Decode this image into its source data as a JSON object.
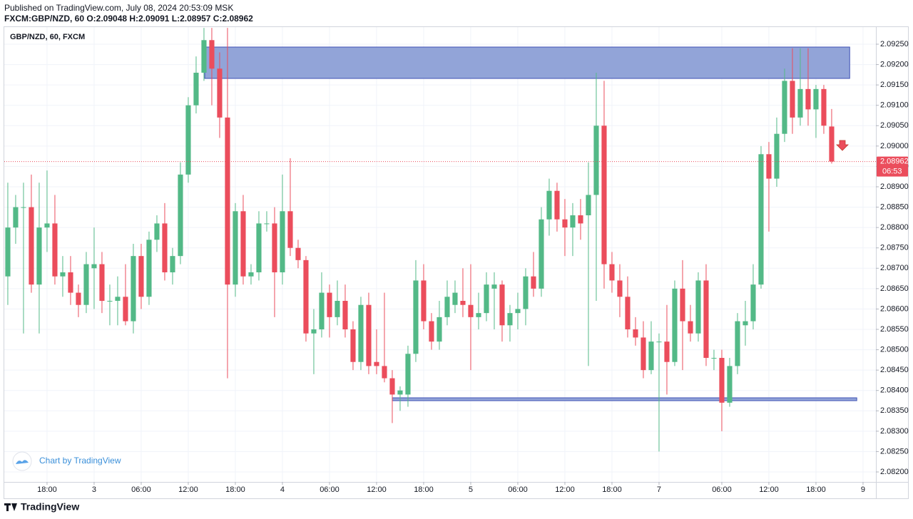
{
  "header": {
    "published": "Published on TradingView.com, July 08, 2024 20:53:09 MSK",
    "info": "FXCM:GBP/NZD, 60 O:2.09048 H:2.09091 L:2.08957 C:2.08962"
  },
  "footer": {
    "logo": "TradingView",
    "watermark": "Chart by TradingView"
  },
  "chart_data": {
    "type": "candlestick",
    "title": "GBP/NZD, 60, FXCM",
    "up_color": "#53b987",
    "down_color": "#eb4d5c",
    "grid": true,
    "open": [
      2.0868,
      2.088,
      2.0885,
      2.0885,
      2.0866,
      2.088,
      2.0881,
      2.0868,
      2.0869,
      2.0864,
      2.0861,
      2.087,
      2.0871,
      2.0862,
      2.0862,
      2.0863,
      2.0857,
      2.0873,
      2.0863,
      2.0877,
      2.0881,
      2.0869,
      2.0873,
      2.0893,
      2.091,
      2.0918,
      2.0926,
      2.0919,
      2.0907,
      2.0866,
      2.0884,
      2.0868,
      2.0869,
      2.0881,
      2.0881,
      2.0869,
      2.0884,
      2.0875,
      2.0872,
      2.0854,
      2.0855,
      2.0864,
      2.0858,
      2.0862,
      2.0855,
      2.0847,
      2.0861,
      2.0847,
      2.0846,
      2.0843,
      2.0839,
      2.0839,
      2.0849,
      2.0867,
      2.0857,
      2.0852,
      2.0858,
      2.0861,
      2.0862,
      2.0861,
      2.0858,
      2.0859,
      2.0865,
      2.0866,
      2.0856,
      2.0859,
      2.086,
      2.0868,
      2.0865,
      2.0882,
      2.0889,
      2.0882,
      2.088,
      2.0883,
      2.0883,
      2.0888,
      2.0905,
      2.0871,
      2.0867,
      2.0863,
      2.0855,
      2.0853,
      2.0845,
      2.0852,
      2.0852,
      2.0847,
      2.0865,
      2.0857,
      2.0854,
      2.0867,
      2.0848,
      2.0848,
      2.0837,
      2.0846,
      2.0856,
      2.0857,
      2.0866,
      2.0898,
      2.0892,
      2.0903,
      2.0916,
      2.0907,
      2.0914,
      2.0909,
      2.0914,
      2.09048
    ],
    "high": [
      2.0891,
      2.0888,
      2.0891,
      2.0893,
      2.0891,
      2.0894,
      2.0888,
      2.0873,
      2.0873,
      2.0866,
      2.0874,
      2.088,
      2.0874,
      2.0866,
      2.0868,
      2.0871,
      2.0876,
      2.0876,
      2.0879,
      2.0883,
      2.0886,
      2.0875,
      2.0896,
      2.0912,
      2.0922,
      2.0929,
      2.0929,
      2.0923,
      2.0929,
      2.0886,
      2.0888,
      2.0871,
      2.0884,
      2.0884,
      2.0885,
      2.0893,
      2.0897,
      2.0877,
      2.0873,
      2.086,
      2.0869,
      2.0866,
      2.0867,
      2.0866,
      2.0857,
      2.0863,
      2.0864,
      2.0855,
      2.0864,
      2.0845,
      2.0841,
      2.0851,
      2.0872,
      2.0871,
      2.0859,
      2.0862,
      2.0867,
      2.0867,
      2.087,
      2.0871,
      2.0864,
      2.0869,
      2.0869,
      2.0867,
      2.0861,
      2.0864,
      2.087,
      2.0874,
      2.0885,
      2.0892,
      2.0891,
      2.0887,
      2.0886,
      2.0887,
      2.0896,
      2.0918,
      2.0916,
      2.0874,
      2.0871,
      2.0868,
      2.0858,
      2.0857,
      2.0857,
      2.0854,
      2.0861,
      2.0867,
      2.0872,
      2.0861,
      2.0869,
      2.0871,
      2.085,
      2.085,
      2.0848,
      2.0859,
      2.0862,
      2.0871,
      2.09,
      2.0901,
      2.0907,
      2.0919,
      2.0924,
      2.0924,
      2.0924,
      2.0915,
      2.0915,
      2.09091
    ],
    "low": [
      2.0861,
      2.0876,
      2.0854,
      2.0864,
      2.0854,
      2.0874,
      2.0866,
      2.0863,
      2.0861,
      2.0858,
      2.0859,
      2.086,
      2.0859,
      2.0856,
      2.0856,
      2.0856,
      2.0854,
      2.086,
      2.0861,
      2.0874,
      2.0867,
      2.0866,
      2.0871,
      2.0891,
      2.0908,
      2.0916,
      2.091,
      2.0902,
      2.0843,
      2.0863,
      2.0866,
      2.0866,
      2.0867,
      2.0879,
      2.0858,
      2.0866,
      2.0873,
      2.087,
      2.0852,
      2.0844,
      2.0853,
      2.0853,
      2.0856,
      2.0853,
      2.0845,
      2.0845,
      2.0844,
      2.0844,
      2.0842,
      2.0832,
      2.0835,
      2.0836,
      2.0847,
      2.0855,
      2.085,
      2.085,
      2.0856,
      2.0859,
      2.0858,
      2.0845,
      2.0855,
      2.0857,
      2.0855,
      2.0852,
      2.0852,
      2.0855,
      2.0856,
      2.0863,
      2.0863,
      2.0878,
      2.0879,
      2.0873,
      2.0873,
      2.0877,
      2.0846,
      2.0862,
      2.0865,
      2.0864,
      2.0858,
      2.0853,
      2.0851,
      2.0843,
      2.0844,
      2.0825,
      2.0839,
      2.0846,
      2.0845,
      2.0852,
      2.0852,
      2.0846,
      2.0845,
      2.083,
      2.0836,
      2.0844,
      2.0851,
      2.0855,
      2.0865,
      2.0879,
      2.089,
      2.0901,
      2.0903,
      2.0905,
      2.0905,
      2.0902,
      2.0903,
      2.08957
    ],
    "close": [
      2.088,
      2.0885,
      2.0885,
      2.0866,
      2.088,
      2.0881,
      2.0868,
      2.0869,
      2.0864,
      2.0861,
      2.0871,
      2.0871,
      2.0862,
      2.0862,
      2.0863,
      2.0857,
      2.0873,
      2.0863,
      2.0877,
      2.0881,
      2.0869,
      2.0873,
      2.0893,
      2.091,
      2.0918,
      2.0926,
      2.0919,
      2.0907,
      2.0866,
      2.0884,
      2.0868,
      2.0869,
      2.0881,
      2.0881,
      2.0869,
      2.0884,
      2.0875,
      2.0872,
      2.0854,
      2.0855,
      2.0864,
      2.0858,
      2.0862,
      2.0855,
      2.0847,
      2.0861,
      2.0846,
      2.0846,
      2.0843,
      2.0839,
      2.084,
      2.0849,
      2.0867,
      2.0857,
      2.0852,
      2.0858,
      2.0863,
      2.0864,
      2.0861,
      2.0858,
      2.0859,
      2.0866,
      2.0866,
      2.0856,
      2.0859,
      2.086,
      2.0868,
      2.0865,
      2.0882,
      2.0889,
      2.0882,
      2.088,
      2.0883,
      2.0881,
      2.0888,
      2.0905,
      2.0871,
      2.0867,
      2.0863,
      2.0855,
      2.0853,
      2.0845,
      2.0852,
      2.0852,
      2.0847,
      2.0865,
      2.0857,
      2.0854,
      2.0867,
      2.0848,
      2.0848,
      2.0837,
      2.0846,
      2.0857,
      2.0857,
      2.0866,
      2.0898,
      2.0892,
      2.0903,
      2.0916,
      2.0907,
      2.0914,
      2.0909,
      2.0914,
      2.0905,
      2.08962
    ],
    "xlim": [
      -0.45,
      110.64
    ],
    "xticks": [
      {
        "value": 5,
        "label": "18:00"
      },
      {
        "value": 11,
        "label": "3"
      },
      {
        "value": 17,
        "label": "06:00"
      },
      {
        "value": 23,
        "label": "12:00"
      },
      {
        "value": 29,
        "label": "18:00"
      },
      {
        "value": 35,
        "label": "4"
      },
      {
        "value": 41,
        "label": "06:00"
      },
      {
        "value": 47,
        "label": "12:00"
      },
      {
        "value": 53,
        "label": "18:00"
      },
      {
        "value": 59,
        "label": "5"
      },
      {
        "value": 65,
        "label": "06:00"
      },
      {
        "value": 71,
        "label": "12:00"
      },
      {
        "value": 77,
        "label": "18:00"
      },
      {
        "value": 83,
        "label": "7"
      },
      {
        "value": 91,
        "label": "06:00"
      },
      {
        "value": 97,
        "label": "12:00"
      },
      {
        "value": 103,
        "label": "18:00"
      },
      {
        "value": 109,
        "label": "9"
      }
    ],
    "ylim": [
      2.081755,
      2.09292
    ],
    "yticks": [
      {
        "value": 2.082,
        "label": "2.08200"
      },
      {
        "value": 2.0825,
        "label": "2.08250"
      },
      {
        "value": 2.083,
        "label": "2.08300"
      },
      {
        "value": 2.0835,
        "label": "2.08350"
      },
      {
        "value": 2.084,
        "label": "2.08400"
      },
      {
        "value": 2.0845,
        "label": "2.08450"
      },
      {
        "value": 2.085,
        "label": "2.08500"
      },
      {
        "value": 2.0855,
        "label": "2.08550"
      },
      {
        "value": 2.086,
        "label": "2.08600"
      },
      {
        "value": 2.0865,
        "label": "2.08650"
      },
      {
        "value": 2.087,
        "label": "2.08700"
      },
      {
        "value": 2.0875,
        "label": "2.08750"
      },
      {
        "value": 2.088,
        "label": "2.08800"
      },
      {
        "value": 2.0885,
        "label": "2.08850"
      },
      {
        "value": 2.089,
        "label": "2.08900"
      },
      {
        "value": 2.0895,
        "label": "2.08950"
      },
      {
        "value": 2.09,
        "label": "2.09000"
      },
      {
        "value": 2.0905,
        "label": "2.09050"
      },
      {
        "value": 2.091,
        "label": "2.09100"
      },
      {
        "value": 2.0915,
        "label": "2.09150"
      },
      {
        "value": 2.092,
        "label": "2.09200"
      },
      {
        "value": 2.0925,
        "label": "2.09250"
      }
    ],
    "last_price": {
      "value": 2.08962,
      "label": "2.08962",
      "countdown": "06:53",
      "color": "#eb4d5c"
    },
    "zones": [
      {
        "x": [
          25.1,
          107.3
        ],
        "y": [
          2.09166,
          2.09243
        ],
        "color": "#8c9fd6",
        "border": "#3f51b5"
      },
      {
        "x": [
          49,
          108.2
        ],
        "y": [
          2.08375,
          2.08382
        ],
        "color": "#8c9fd6",
        "border": "#3f51b5"
      }
    ]
  }
}
